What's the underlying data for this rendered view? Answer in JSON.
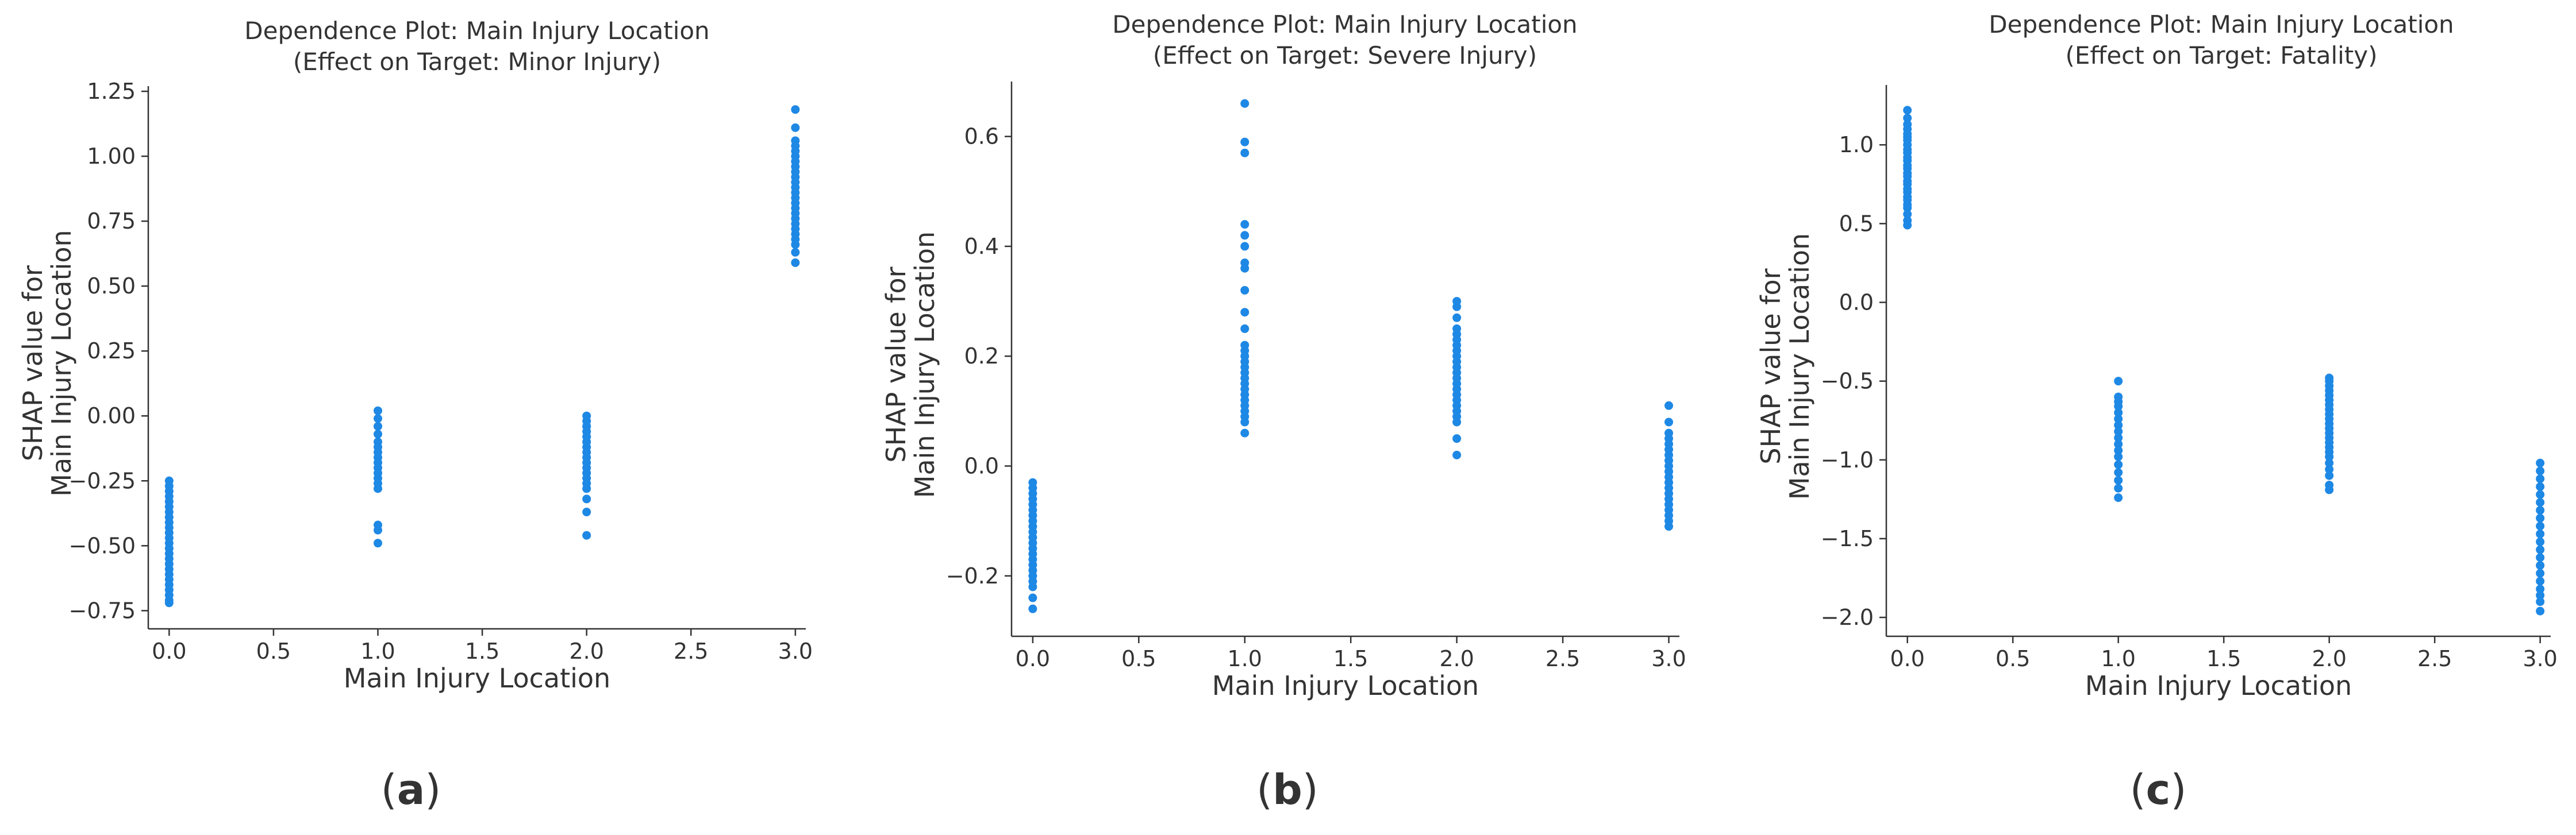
{
  "figure": {
    "captions": [
      "a",
      "b",
      "c"
    ]
  },
  "chart_data": [
    {
      "type": "scatter",
      "title": "Dependence Plot: Main Injury Location",
      "subtitle": "(Effect on Target: Minor Injury)",
      "xlabel": "Main Injury Location",
      "ylabel_line1": "SHAP value for",
      "ylabel_line2": "Main Injury Location",
      "xlim": [
        -0.1,
        3.05
      ],
      "ylim": [
        -0.82,
        1.27
      ],
      "xticks": [
        0.0,
        0.5,
        1.0,
        1.5,
        2.0,
        2.5,
        3.0
      ],
      "xtick_labels": [
        "0.0",
        "0.5",
        "1.0",
        "1.5",
        "2.0",
        "2.5",
        "3.0"
      ],
      "yticks": [
        -0.75,
        -0.5,
        -0.25,
        0.0,
        0.25,
        0.5,
        0.75,
        1.0,
        1.25
      ],
      "ytick_labels": [
        "−0.75",
        "−0.50",
        "−0.25",
        "0.00",
        "0.25",
        "0.50",
        "0.75",
        "1.00",
        "1.25"
      ],
      "point_color": "#1E88E5",
      "series": [
        {
          "x": 0.0,
          "y": [
            -0.25,
            -0.27,
            -0.29,
            -0.31,
            -0.33,
            -0.35,
            -0.37,
            -0.39,
            -0.41,
            -0.43,
            -0.45,
            -0.47,
            -0.49,
            -0.51,
            -0.53,
            -0.55,
            -0.57,
            -0.59,
            -0.61,
            -0.63,
            -0.65,
            -0.67,
            -0.69,
            -0.71,
            -0.72
          ]
        },
        {
          "x": 1.0,
          "y": [
            0.02,
            -0.01,
            -0.04,
            -0.07,
            -0.1,
            -0.12,
            -0.14,
            -0.16,
            -0.18,
            -0.2,
            -0.22,
            -0.24,
            -0.26,
            -0.28,
            -0.42,
            -0.44,
            -0.49
          ]
        },
        {
          "x": 2.0,
          "y": [
            0.0,
            -0.02,
            -0.04,
            -0.06,
            -0.08,
            -0.1,
            -0.12,
            -0.14,
            -0.16,
            -0.18,
            -0.2,
            -0.22,
            -0.24,
            -0.26,
            -0.28,
            -0.32,
            -0.37,
            -0.46
          ]
        },
        {
          "x": 3.0,
          "y": [
            1.18,
            1.11,
            1.06,
            1.04,
            1.02,
            1.0,
            0.98,
            0.96,
            0.94,
            0.92,
            0.9,
            0.88,
            0.86,
            0.84,
            0.82,
            0.8,
            0.78,
            0.76,
            0.74,
            0.72,
            0.7,
            0.68,
            0.66,
            0.63,
            0.59
          ]
        }
      ]
    },
    {
      "type": "scatter",
      "title": "Dependence Plot: Main Injury Location",
      "subtitle": "(Effect on Target: Severe Injury)",
      "xlabel": "Main Injury Location",
      "ylabel_line1": "SHAP value for",
      "ylabel_line2": "Main Injury Location",
      "xlim": [
        -0.1,
        3.05
      ],
      "ylim": [
        -0.31,
        0.7
      ],
      "xticks": [
        0.0,
        0.5,
        1.0,
        1.5,
        2.0,
        2.5,
        3.0
      ],
      "xtick_labels": [
        "0.0",
        "0.5",
        "1.0",
        "1.5",
        "2.0",
        "2.5",
        "3.0"
      ],
      "yticks": [
        -0.2,
        0.0,
        0.2,
        0.4,
        0.6
      ],
      "ytick_labels": [
        "−0.2",
        "0.0",
        "0.2",
        "0.4",
        "0.6"
      ],
      "point_color": "#1E88E5",
      "series": [
        {
          "x": 0.0,
          "y": [
            -0.03,
            -0.04,
            -0.05,
            -0.06,
            -0.07,
            -0.08,
            -0.09,
            -0.1,
            -0.11,
            -0.12,
            -0.13,
            -0.14,
            -0.15,
            -0.16,
            -0.17,
            -0.18,
            -0.19,
            -0.2,
            -0.21,
            -0.22,
            -0.24,
            -0.26
          ]
        },
        {
          "x": 1.0,
          "y": [
            0.66,
            0.59,
            0.57,
            0.44,
            0.42,
            0.4,
            0.37,
            0.36,
            0.32,
            0.28,
            0.25,
            0.22,
            0.21,
            0.2,
            0.19,
            0.18,
            0.17,
            0.16,
            0.15,
            0.14,
            0.13,
            0.12,
            0.11,
            0.1,
            0.09,
            0.08,
            0.06
          ]
        },
        {
          "x": 2.0,
          "y": [
            0.3,
            0.29,
            0.27,
            0.25,
            0.24,
            0.23,
            0.22,
            0.21,
            0.2,
            0.19,
            0.18,
            0.17,
            0.16,
            0.15,
            0.14,
            0.13,
            0.12,
            0.11,
            0.1,
            0.09,
            0.08,
            0.05,
            0.02
          ]
        },
        {
          "x": 3.0,
          "y": [
            0.11,
            0.08,
            0.06,
            0.05,
            0.04,
            0.03,
            0.02,
            0.01,
            0.0,
            -0.01,
            -0.02,
            -0.03,
            -0.04,
            -0.05,
            -0.06,
            -0.07,
            -0.08,
            -0.09,
            -0.1,
            -0.11
          ]
        }
      ]
    },
    {
      "type": "scatter",
      "title": "Dependence Plot: Main Injury Location",
      "subtitle": "(Effect on Target: Fatality)",
      "xlabel": "Main Injury Location",
      "ylabel_line1": "SHAP value for",
      "ylabel_line2": "Main Injury Location",
      "xlim": [
        -0.1,
        3.05
      ],
      "ylim": [
        -2.12,
        1.38
      ],
      "xticks": [
        0.0,
        0.5,
        1.0,
        1.5,
        2.0,
        2.5,
        3.0
      ],
      "xtick_labels": [
        "0.0",
        "0.5",
        "1.0",
        "1.5",
        "2.0",
        "2.5",
        "3.0"
      ],
      "yticks": [
        -2.0,
        -1.5,
        -1.0,
        -0.5,
        0.0,
        0.5,
        1.0
      ],
      "ytick_labels": [
        "−2.0",
        "−1.5",
        "−1.0",
        "−0.5",
        "0.0",
        "0.5",
        "1.0"
      ],
      "point_color": "#1E88E5",
      "series": [
        {
          "x": 0.0,
          "y": [
            1.22,
            1.17,
            1.13,
            1.1,
            1.07,
            1.05,
            1.03,
            1.0,
            0.97,
            0.95,
            0.92,
            0.9,
            0.87,
            0.85,
            0.82,
            0.8,
            0.77,
            0.75,
            0.72,
            0.7,
            0.67,
            0.65,
            0.62,
            0.6,
            0.56,
            0.52,
            0.49
          ]
        },
        {
          "x": 1.0,
          "y": [
            -0.5,
            -0.6,
            -0.63,
            -0.66,
            -0.7,
            -0.74,
            -0.78,
            -0.82,
            -0.86,
            -0.9,
            -0.94,
            -0.98,
            -1.03,
            -1.08,
            -1.13,
            -1.18,
            -1.24
          ]
        },
        {
          "x": 2.0,
          "y": [
            -0.48,
            -0.5,
            -0.53,
            -0.56,
            -0.59,
            -0.62,
            -0.65,
            -0.68,
            -0.71,
            -0.74,
            -0.77,
            -0.8,
            -0.83,
            -0.86,
            -0.89,
            -0.92,
            -0.95,
            -0.98,
            -1.02,
            -1.06,
            -1.1,
            -1.16,
            -1.19
          ]
        },
        {
          "x": 3.0,
          "y": [
            -1.02,
            -1.07,
            -1.12,
            -1.17,
            -1.22,
            -1.27,
            -1.32,
            -1.37,
            -1.42,
            -1.47,
            -1.52,
            -1.57,
            -1.62,
            -1.67,
            -1.72,
            -1.77,
            -1.82,
            -1.86,
            -1.9,
            -1.96
          ]
        }
      ]
    }
  ]
}
